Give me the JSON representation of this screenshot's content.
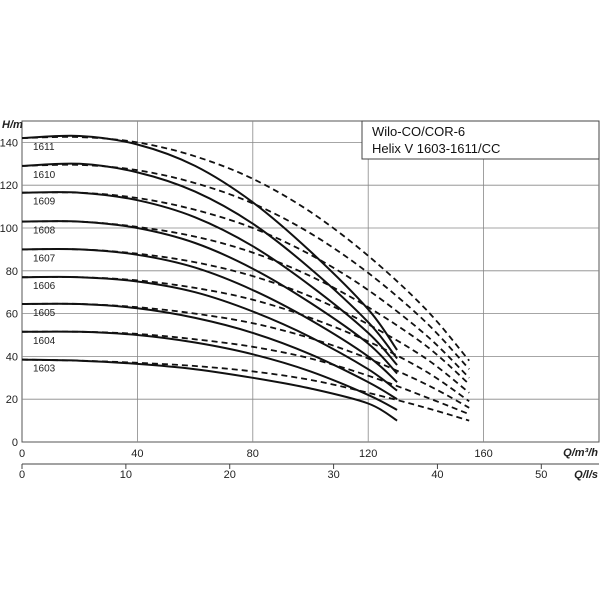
{
  "chart_data": {
    "type": "line",
    "title_lines": [
      "Wilo-CO/COR-6",
      "Helix V 1603-1611/CC"
    ],
    "y_label": "H/m",
    "x_label": "Q/m³/h",
    "x2_label": "Q/l/s",
    "xlim": [
      0,
      200
    ],
    "ylim": [
      0,
      150
    ],
    "x_ticks": [
      0,
      40,
      80,
      120,
      160
    ],
    "y_ticks": [
      0,
      20,
      40,
      60,
      80,
      100,
      120,
      140
    ],
    "x2_ticks": [
      0,
      10,
      20,
      30,
      40,
      50
    ],
    "x2_factor": 3.6,
    "grid": true,
    "series": [
      {
        "name": "1603",
        "solid": [
          [
            0,
            38.5
          ],
          [
            20,
            38
          ],
          [
            40,
            36.5
          ],
          [
            60,
            34
          ],
          [
            80,
            30
          ],
          [
            100,
            25
          ],
          [
            120,
            18
          ],
          [
            130,
            10
          ]
        ],
        "dashed": [
          [
            0,
            38.5
          ],
          [
            20,
            38
          ],
          [
            40,
            37
          ],
          [
            60,
            35.5
          ],
          [
            80,
            33
          ],
          [
            100,
            29
          ],
          [
            120,
            23
          ],
          [
            140,
            16
          ],
          [
            155,
            10
          ]
        ]
      },
      {
        "name": "1604",
        "solid": [
          [
            0,
            51.5
          ],
          [
            20,
            51.5
          ],
          [
            40,
            50
          ],
          [
            60,
            46.5
          ],
          [
            80,
            41
          ],
          [
            100,
            33
          ],
          [
            120,
            22
          ],
          [
            130,
            15
          ]
        ],
        "dashed": [
          [
            0,
            51.5
          ],
          [
            20,
            51.5
          ],
          [
            40,
            50.5
          ],
          [
            60,
            48
          ],
          [
            80,
            44.5
          ],
          [
            100,
            39
          ],
          [
            120,
            31
          ],
          [
            140,
            21
          ],
          [
            155,
            13
          ]
        ]
      },
      {
        "name": "1605",
        "solid": [
          [
            0,
            64.5
          ],
          [
            20,
            64.5
          ],
          [
            40,
            62.5
          ],
          [
            60,
            58
          ],
          [
            80,
            51
          ],
          [
            100,
            41
          ],
          [
            120,
            28
          ],
          [
            130,
            20
          ]
        ],
        "dashed": [
          [
            0,
            64.5
          ],
          [
            20,
            64.5
          ],
          [
            40,
            63
          ],
          [
            60,
            60
          ],
          [
            80,
            55.5
          ],
          [
            100,
            48.5
          ],
          [
            120,
            39
          ],
          [
            140,
            27
          ],
          [
            155,
            16
          ]
        ]
      },
      {
        "name": "1606",
        "solid": [
          [
            0,
            77
          ],
          [
            20,
            77
          ],
          [
            40,
            75
          ],
          [
            60,
            70
          ],
          [
            80,
            61
          ],
          [
            100,
            49
          ],
          [
            120,
            34
          ],
          [
            130,
            24
          ]
        ],
        "dashed": [
          [
            0,
            77
          ],
          [
            20,
            77
          ],
          [
            40,
            75.5
          ],
          [
            60,
            72
          ],
          [
            80,
            66.5
          ],
          [
            100,
            58
          ],
          [
            120,
            47
          ],
          [
            140,
            33
          ],
          [
            155,
            19
          ]
        ]
      },
      {
        "name": "1607",
        "solid": [
          [
            0,
            90
          ],
          [
            20,
            90
          ],
          [
            40,
            87.5
          ],
          [
            60,
            81.5
          ],
          [
            80,
            71
          ],
          [
            100,
            57
          ],
          [
            120,
            40
          ],
          [
            130,
            28
          ]
        ],
        "dashed": [
          [
            0,
            90
          ],
          [
            20,
            90
          ],
          [
            40,
            88
          ],
          [
            60,
            84
          ],
          [
            80,
            77.5
          ],
          [
            100,
            68
          ],
          [
            120,
            55
          ],
          [
            140,
            39
          ],
          [
            155,
            23
          ]
        ]
      },
      {
        "name": "1608",
        "solid": [
          [
            0,
            103
          ],
          [
            20,
            103
          ],
          [
            40,
            100
          ],
          [
            60,
            93
          ],
          [
            80,
            81
          ],
          [
            100,
            65
          ],
          [
            120,
            46
          ],
          [
            130,
            32
          ]
        ],
        "dashed": [
          [
            0,
            103
          ],
          [
            20,
            103
          ],
          [
            40,
            100.5
          ],
          [
            60,
            96
          ],
          [
            80,
            88.5
          ],
          [
            100,
            77.5
          ],
          [
            120,
            63
          ],
          [
            140,
            45
          ],
          [
            155,
            27
          ]
        ]
      },
      {
        "name": "1609",
        "solid": [
          [
            0,
            116.5
          ],
          [
            20,
            116.5
          ],
          [
            40,
            113
          ],
          [
            60,
            105
          ],
          [
            80,
            91.5
          ],
          [
            100,
            73
          ],
          [
            120,
            51
          ],
          [
            130,
            36
          ]
        ],
        "dashed": [
          [
            0,
            116.5
          ],
          [
            20,
            116.5
          ],
          [
            40,
            114
          ],
          [
            60,
            108.5
          ],
          [
            80,
            100
          ],
          [
            100,
            87.5
          ],
          [
            120,
            71
          ],
          [
            140,
            50
          ],
          [
            155,
            30
          ]
        ]
      },
      {
        "name": "1610",
        "solid": [
          [
            0,
            129
          ],
          [
            20,
            130
          ],
          [
            40,
            126
          ],
          [
            60,
            117
          ],
          [
            80,
            102
          ],
          [
            100,
            81
          ],
          [
            120,
            56
          ],
          [
            130,
            39
          ]
        ],
        "dashed": [
          [
            0,
            129
          ],
          [
            20,
            129.5
          ],
          [
            40,
            127
          ],
          [
            60,
            121
          ],
          [
            80,
            111.5
          ],
          [
            100,
            97.5
          ],
          [
            120,
            79
          ],
          [
            140,
            56
          ],
          [
            155,
            34
          ]
        ]
      },
      {
        "name": "1611",
        "solid": [
          [
            0,
            142
          ],
          [
            20,
            143
          ],
          [
            40,
            139
          ],
          [
            60,
            129
          ],
          [
            80,
            112
          ],
          [
            100,
            89
          ],
          [
            120,
            62
          ],
          [
            130,
            43
          ]
        ],
        "dashed": [
          [
            0,
            142
          ],
          [
            20,
            142.5
          ],
          [
            40,
            140
          ],
          [
            60,
            133.5
          ],
          [
            80,
            123
          ],
          [
            100,
            107.5
          ],
          [
            120,
            87
          ],
          [
            140,
            62
          ],
          [
            155,
            38
          ]
        ]
      }
    ]
  }
}
